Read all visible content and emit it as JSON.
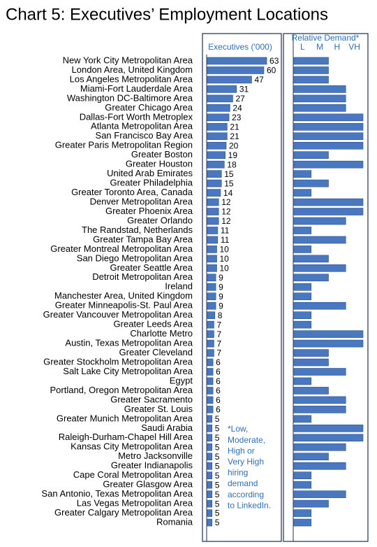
{
  "title": "Chart 5: Executives’ Employment Locations",
  "chart_data": [
    {
      "type": "bar",
      "orientation": "horizontal",
      "x_label": "Executives ('000)",
      "color": "#4a78c0",
      "xlim": [
        0,
        80
      ],
      "categories": [
        "New York City Metropolitan Area",
        "London Area, United Kingdom",
        "Los Angeles Metropolitan Area",
        "Miami-Fort Lauderdale Area",
        "Washington DC-Baltimore Area",
        "Greater Chicago Area",
        "Dallas-Fort Worth Metroplex",
        "Atlanta Metropolitan Area",
        "San Francisco Bay Area",
        "Greater Paris Metropolitan Region",
        "Greater Boston",
        "Greater Houston",
        "United Arab Emirates",
        "Greater Philadelphia",
        "Greater Toronto Area, Canada",
        "Denver Metropolitan Area",
        "Greater Phoenix Area",
        "Greater Orlando",
        "The Randstad, Netherlands",
        "Greater Tampa Bay Area",
        "Greater Montreal Metropolitan Area",
        "San Diego Metropolitan Area",
        "Greater Seattle Area",
        "Detroit Metropolitan Area",
        "Ireland",
        "Manchester Area, United Kingdom",
        "Greater Minneapolis-St. Paul Area",
        "Greater Vancouver Metropolitan Area",
        "Greater Leeds Area",
        "Charlotte Metro",
        "Austin, Texas Metropolitan Area",
        "Greater Cleveland",
        "Greater Stockholm Metropolitan Area",
        "Salt Lake City Metropolitan Area",
        "Egypt",
        "Portland, Oregon Metropolitan Area",
        "Greater Sacramento",
        "Greater St. Louis",
        "Greater Munich Metropolitan Area",
        "Saudi Arabia",
        "Raleigh-Durham-Chapel Hill Area",
        "Kansas City Metropolitan Area",
        "Metro Jacksonville",
        "Greater Indianapolis",
        "Cape Coral Metropolitan Area",
        "Greater Glasgow Area",
        "San Antonio, Texas Metropolitan Area",
        "Las Vegas Metropolitan Area",
        "Greater Calgary Metropolitan Area",
        "Romania"
      ],
      "values": [
        63,
        60,
        47,
        31,
        27,
        24,
        23,
        21,
        21,
        20,
        19,
        18,
        15,
        15,
        14,
        12,
        12,
        12,
        11,
        11,
        10,
        10,
        10,
        9,
        9,
        9,
        9,
        8,
        7,
        7,
        7,
        7,
        6,
        6,
        6,
        6,
        6,
        6,
        5,
        5,
        5,
        5,
        5,
        5,
        5,
        5,
        5,
        5,
        5,
        5
      ]
    },
    {
      "type": "bar",
      "orientation": "horizontal",
      "x_label": "Relative Demand*",
      "color": "#4a78c0",
      "xlim": [
        0,
        4
      ],
      "xticks": [
        {
          "value": 1,
          "label": "L"
        },
        {
          "value": 2,
          "label": "M"
        },
        {
          "value": 3,
          "label": "H"
        },
        {
          "value": 4,
          "label": "VH"
        }
      ],
      "values": [
        2,
        2,
        2,
        3,
        3,
        3,
        4,
        4,
        4,
        4,
        2,
        4,
        1,
        2,
        1,
        4,
        4,
        3,
        1,
        3,
        1,
        2,
        3,
        2,
        1,
        1,
        3,
        1,
        1,
        4,
        4,
        2,
        2,
        3,
        1,
        2,
        3,
        3,
        1,
        4,
        4,
        3,
        2,
        3,
        1,
        1,
        3,
        2,
        1,
        1
      ],
      "annotation": [
        "*Low,",
        "Moderate,",
        "High or",
        "Very High",
        "hiring",
        "demand",
        "according",
        "to LinkedIn."
      ]
    }
  ]
}
